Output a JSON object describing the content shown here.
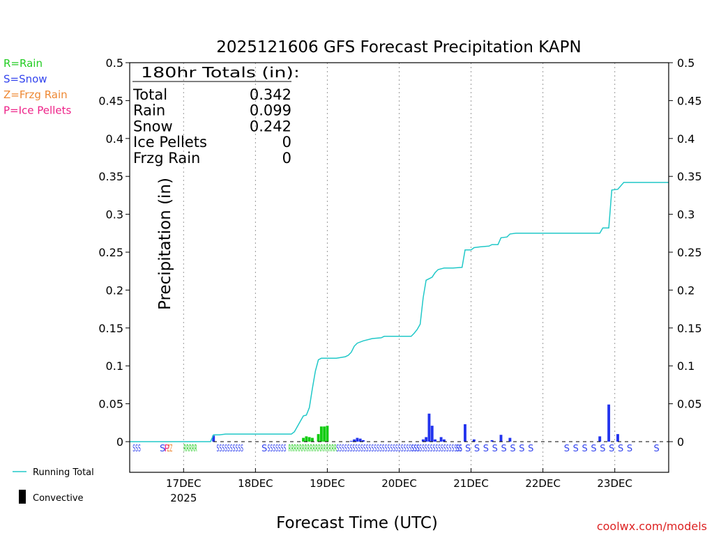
{
  "chart_data": {
    "type": "bar",
    "title": "2025121606 GFS Forecast Precipitation KAPN",
    "xlabel": "Forecast Time (UTC)",
    "ylabel": "Precipitation (in)",
    "ylim": [
      0,
      0.5
    ],
    "yticks": [
      0,
      0.05,
      0.1,
      0.15,
      0.2,
      0.25,
      0.3,
      0.35,
      0.4,
      0.45,
      0.5
    ],
    "ytick_labels": [
      "0",
      "0.05",
      "0.1",
      "0.15",
      "0.2",
      "0.25",
      "0.3",
      "0.35",
      "0.4",
      "0.45",
      "0.5"
    ],
    "xlim_hours": [
      6,
      186
    ],
    "x_unit": "forecast hour from 2025-12-16 00Z",
    "xticks": [
      {
        "hour": 24,
        "label": "17DEC",
        "sub": "2025"
      },
      {
        "hour": 48,
        "label": "18DEC",
        "sub": ""
      },
      {
        "hour": 72,
        "label": "19DEC",
        "sub": ""
      },
      {
        "hour": 96,
        "label": "20DEC",
        "sub": ""
      },
      {
        "hour": 120,
        "label": "21DEC",
        "sub": ""
      },
      {
        "hour": 144,
        "label": "22DEC",
        "sub": ""
      },
      {
        "hour": 168,
        "label": "23DEC",
        "sub": ""
      }
    ],
    "legend": {
      "type_keys": [
        {
          "label": "R=Rain",
          "color": "#22cc22"
        },
        {
          "label": "S=Snow",
          "color": "#3344ee"
        },
        {
          "label": "Z=Frzg Rain",
          "color": "#ee8833"
        },
        {
          "label": "P=Ice Pellets",
          "color": "#ee2288"
        }
      ],
      "running_total_label": "Running Total",
      "convective_label": "Convective"
    },
    "totals_box": {
      "header": "180hr Totals (in):",
      "rows": [
        {
          "label": "Total",
          "value": "0.342"
        },
        {
          "label": "Rain",
          "value": "0.099"
        },
        {
          "label": "Snow",
          "value": "0.242"
        },
        {
          "label": "Ice Pellets",
          "value": "0"
        },
        {
          "label": "Frzg Rain",
          "value": "0"
        }
      ]
    },
    "series": [
      {
        "name": "Running Total",
        "kind": "line",
        "color": "#20c8c8",
        "points": [
          [
            6,
            0
          ],
          [
            33,
            0
          ],
          [
            34,
            0.009
          ],
          [
            36,
            0.009
          ],
          [
            38,
            0.01
          ],
          [
            60,
            0.01
          ],
          [
            61,
            0.013
          ],
          [
            62,
            0.02
          ],
          [
            63,
            0.027
          ],
          [
            64,
            0.034
          ],
          [
            65,
            0.035
          ],
          [
            66,
            0.045
          ],
          [
            67,
            0.07
          ],
          [
            68,
            0.093
          ],
          [
            69,
            0.108
          ],
          [
            70,
            0.11
          ],
          [
            75,
            0.11
          ],
          [
            78,
            0.112
          ],
          [
            79,
            0.114
          ],
          [
            80,
            0.118
          ],
          [
            81,
            0.126
          ],
          [
            82,
            0.13
          ],
          [
            84,
            0.133
          ],
          [
            87,
            0.136
          ],
          [
            90,
            0.137
          ],
          [
            91,
            0.139
          ],
          [
            100,
            0.139
          ],
          [
            101,
            0.143
          ],
          [
            102,
            0.148
          ],
          [
            103,
            0.155
          ],
          [
            104,
            0.19
          ],
          [
            105,
            0.213
          ],
          [
            107,
            0.217
          ],
          [
            108,
            0.223
          ],
          [
            109,
            0.227
          ],
          [
            111,
            0.229
          ],
          [
            114,
            0.229
          ],
          [
            117,
            0.23
          ],
          [
            118,
            0.253
          ],
          [
            120,
            0.253
          ],
          [
            121,
            0.256
          ],
          [
            123,
            0.257
          ],
          [
            126,
            0.258
          ],
          [
            127,
            0.26
          ],
          [
            129,
            0.26
          ],
          [
            130,
            0.269
          ],
          [
            132,
            0.27
          ],
          [
            133,
            0.274
          ],
          [
            135,
            0.275
          ],
          [
            163,
            0.275
          ],
          [
            164,
            0.282
          ],
          [
            166,
            0.282
          ],
          [
            167,
            0.332
          ],
          [
            169,
            0.333
          ],
          [
            171,
            0.342
          ],
          [
            186,
            0.342
          ]
        ]
      },
      {
        "name": "Rain bars",
        "kind": "bar",
        "color": "#11cc11",
        "x": [
          64,
          65,
          66,
          67,
          69,
          70,
          71,
          72
        ],
        "values": [
          0.005,
          0.007,
          0.006,
          0.005,
          0.01,
          0.02,
          0.02,
          0.021
        ]
      },
      {
        "name": "Snow bars",
        "kind": "bar",
        "color": "#2233ee",
        "x": [
          34,
          80,
          81,
          82,
          83,
          84,
          104,
          105,
          106,
          107,
          108,
          110,
          111,
          118,
          121,
          127,
          130,
          133,
          163,
          166,
          169
        ],
        "values": [
          0.008,
          0.001,
          0.003,
          0.005,
          0.004,
          0.002,
          0.003,
          0.006,
          0.037,
          0.021,
          0.003,
          0.006,
          0.003,
          0.023,
          0.003,
          0.002,
          0.009,
          0.005,
          0.007,
          0.049,
          0.01
        ]
      }
    ],
    "ptype_rows": [
      {
        "text": "SSS",
        "hour": 7,
        "color": "#3344ee"
      },
      {
        "text": "S",
        "hour": 16,
        "color": "#3344ee"
      },
      {
        "text": "P",
        "hour": 17.5,
        "color": "#ee2288"
      },
      {
        "text": "ZZ",
        "hour": 18.5,
        "color": "#ee8833"
      },
      {
        "text": "RRRRR",
        "hour": 24,
        "color": "#22cc22"
      },
      {
        "text": "SSSSSSSSSS",
        "hour": 35,
        "color": "#3344ee"
      },
      {
        "text": "S",
        "hour": 50,
        "color": "#3344ee"
      },
      {
        "text": "SSSSSSS",
        "hour": 52,
        "color": "#3344ee"
      },
      {
        "text": "RRRRRRRRRRRRRRRRRR",
        "hour": 59,
        "color": "#22cc22"
      },
      {
        "text": "SSSSSSSSSSSSSSSSSSSSSSSSSSSSSSS",
        "hour": 75,
        "color": "#3344ee"
      },
      {
        "text": "SSSSSSSSSSSSSSSSSSS",
        "hour": 100,
        "color": "#3344ee"
      },
      {
        "text": "SS",
        "hour": 115,
        "color": "#3344ee"
      },
      {
        "text": "S",
        "hour": 118,
        "color": "#3344ee"
      },
      {
        "text": "S",
        "hour": 121,
        "color": "#3344ee"
      },
      {
        "text": "S",
        "hour": 124,
        "color": "#3344ee"
      },
      {
        "text": "S",
        "hour": 127,
        "color": "#3344ee"
      },
      {
        "text": "S",
        "hour": 130,
        "color": "#3344ee"
      },
      {
        "text": "S",
        "hour": 133,
        "color": "#3344ee"
      },
      {
        "text": "S",
        "hour": 136,
        "color": "#3344ee"
      },
      {
        "text": "S",
        "hour": 139,
        "color": "#3344ee"
      },
      {
        "text": "S",
        "hour": 151,
        "color": "#3344ee"
      },
      {
        "text": "S",
        "hour": 154,
        "color": "#3344ee"
      },
      {
        "text": "S",
        "hour": 157,
        "color": "#3344ee"
      },
      {
        "text": "S",
        "hour": 160,
        "color": "#3344ee"
      },
      {
        "text": "S",
        "hour": 163,
        "color": "#3344ee"
      },
      {
        "text": "S",
        "hour": 166,
        "color": "#3344ee"
      },
      {
        "text": "S",
        "hour": 169,
        "color": "#3344ee"
      },
      {
        "text": "S",
        "hour": 172,
        "color": "#3344ee"
      },
      {
        "text": "S",
        "hour": 181,
        "color": "#3344ee"
      }
    ],
    "credit": "coolwx.com/models"
  }
}
